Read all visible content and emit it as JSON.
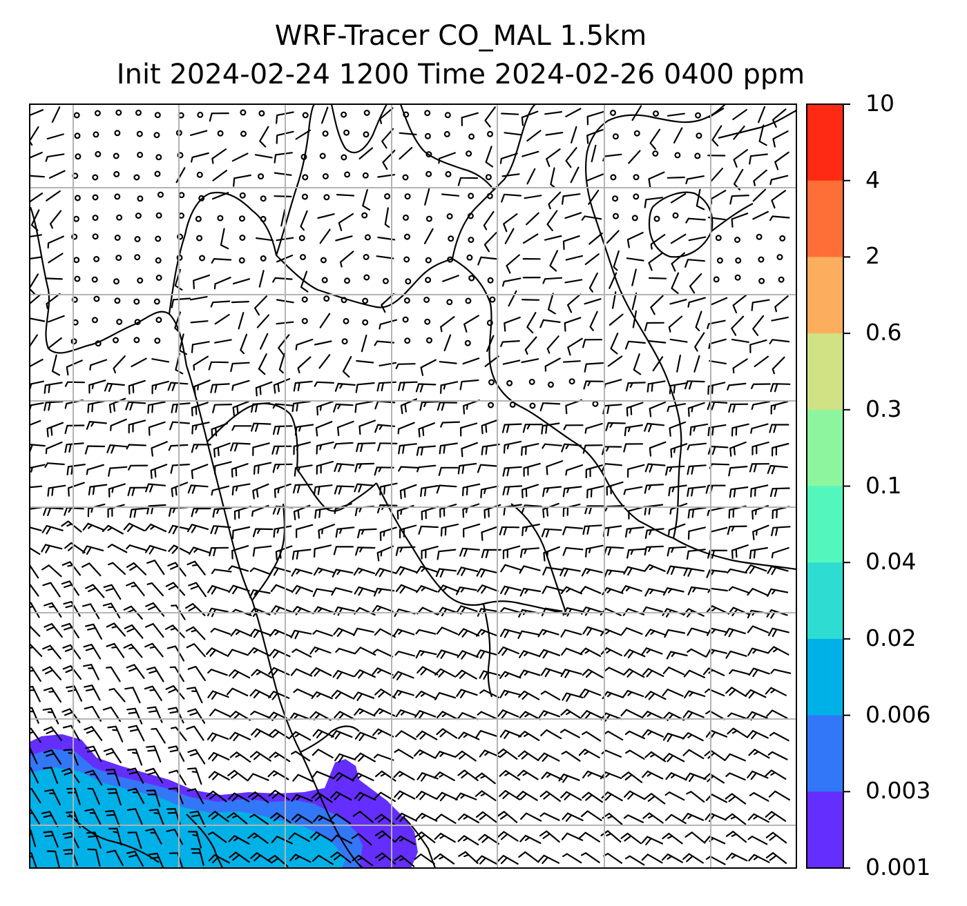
{
  "title": {
    "line1": "WRF-Tracer CO_MAL 1.5km",
    "line2": "Init 2024-02-24 1200 Time 2024-02-26 0400 ppm"
  },
  "map": {
    "grid": "on",
    "grid_color": "#b3b3b3",
    "coastline_color": "#000000",
    "barb_color": "#000000",
    "plume_location": "bottom-left"
  },
  "colorbar": {
    "position": "right",
    "levels": [
      "10",
      "4",
      "2",
      "0.6",
      "0.3",
      "0.1",
      "0.04",
      "0.02",
      "0.006",
      "0.003",
      "0.001"
    ],
    "colors": [
      "#fe2a14",
      "#fe6f37",
      "#fdad5e",
      "#d1e285",
      "#8ef59f",
      "#53f7bd",
      "#2fdcd2",
      "#00b1e8",
      "#3277f7",
      "#642eff"
    ]
  }
}
